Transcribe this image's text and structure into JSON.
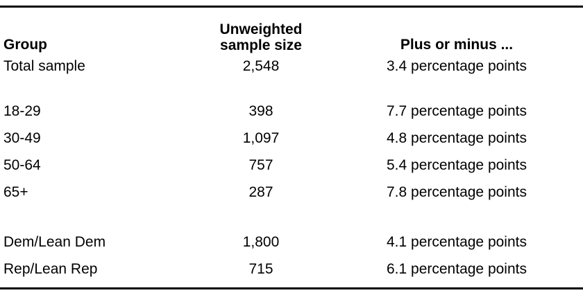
{
  "table": {
    "rule_color": "#000000",
    "headers": {
      "group": "Group",
      "sample_line1": "Unweighted",
      "sample_line2": "sample size",
      "margin": "Plus or minus ..."
    },
    "rows": [
      {
        "group": "Total sample",
        "sample_size": "2,548",
        "margin": "3.4 percentage points"
      },
      {
        "group": "18-29",
        "sample_size": "398",
        "margin": "7.7 percentage points"
      },
      {
        "group": "30-49",
        "sample_size": "1,097",
        "margin": "4.8 percentage points"
      },
      {
        "group": "50-64",
        "sample_size": "757",
        "margin": "5.4 percentage points"
      },
      {
        "group": "65+",
        "sample_size": "287",
        "margin": "7.8 percentage points"
      },
      {
        "group": "Dem/Lean Dem",
        "sample_size": "1,800",
        "margin": "4.1 percentage points"
      },
      {
        "group": "Rep/Lean Rep",
        "sample_size": "715",
        "margin": "6.1 percentage points"
      }
    ]
  }
}
